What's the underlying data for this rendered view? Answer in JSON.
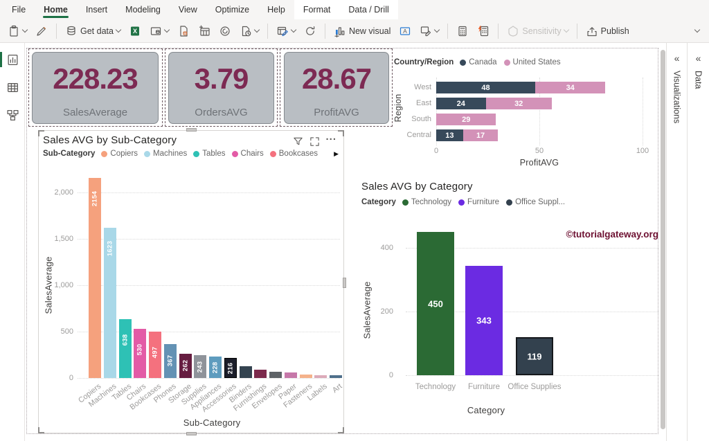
{
  "menu": {
    "items": [
      "File",
      "Home",
      "Insert",
      "Modeling",
      "View",
      "Optimize",
      "Help"
    ],
    "active_item": "Home",
    "contextual_tabs": [
      "Format",
      "Data / Drill"
    ]
  },
  "ribbon": {
    "get_data": "Get data",
    "new_visual": "New visual",
    "sensitivity": "Sensitivity",
    "publish": "Publish"
  },
  "cards": [
    {
      "value": "228.23",
      "label": "SalesAverage"
    },
    {
      "value": "3.79",
      "label": "OrdersAVG"
    },
    {
      "value": "28.67",
      "label": "ProfitAVG"
    }
  ],
  "side_panels": {
    "visualizations": "Visualizations",
    "data": "Data",
    "expand_glyph": "«"
  },
  "visual_header": {
    "more_options_glyph": "...",
    "legend_overflow_glyph": "▶"
  },
  "chart_data": [
    {
      "id": "profitavg-by-region",
      "type": "bar",
      "orientation": "horizontal",
      "stacked": true,
      "legend_title": "Country/Region",
      "legend_position": "top",
      "categories": [
        "West",
        "East",
        "South",
        "Central"
      ],
      "series": [
        {
          "name": "Canada",
          "color": "#37495A",
          "values": [
            48,
            24,
            null,
            13
          ]
        },
        {
          "name": "United States",
          "color": "#D392B8",
          "values": [
            34,
            32,
            29,
            17
          ]
        }
      ],
      "xlabel": "ProfitAVG",
      "ylabel": "Region",
      "xlim": [
        0,
        100
      ],
      "xticks": [
        0,
        50,
        100
      ],
      "grid": true
    },
    {
      "id": "sales-avg-by-subcategory",
      "type": "bar",
      "title": "Sales AVG by Sub-Category",
      "legend_title": "Sub-Category",
      "legend_visible_items": [
        {
          "label": "Copiers",
          "color": "#F5A17D"
        },
        {
          "label": "Machines",
          "color": "#A9D8E8"
        },
        {
          "label": "Tables",
          "color": "#2EC1B5"
        },
        {
          "label": "Chairs",
          "color": "#E35BA6"
        },
        {
          "label": "Bookcases",
          "color": "#F4717E"
        }
      ],
      "legend_overflow": true,
      "categories": [
        "Copiers",
        "Machines",
        "Tables",
        "Chairs",
        "Bookcases",
        "Phones",
        "Storage",
        "Supplies",
        "Appliances",
        "Accessories",
        "Binders",
        "Furnishings",
        "Envelopes",
        "Paper",
        "Fasteners",
        "Labels",
        "Art"
      ],
      "values": [
        2154,
        1623,
        638,
        530,
        497,
        367,
        262,
        243,
        228,
        216,
        130,
        92,
        64,
        57,
        35,
        33,
        30
      ],
      "data_labels": [
        2154,
        1623,
        638,
        530,
        497,
        367,
        262,
        243,
        228,
        216,
        null,
        null,
        null,
        null,
        null,
        null,
        null
      ],
      "colors": [
        "#F5A17D",
        "#A9D8E8",
        "#2EC1B5",
        "#E35BA6",
        "#F4717E",
        "#6392B4",
        "#661D40",
        "#8F939A",
        "#5E9CBE",
        "#1B1D29",
        "#344350",
        "#7C2A4C",
        "#5E6367",
        "#C678A9",
        "#F5B28B",
        "#DCAAB9",
        "#4F708B"
      ],
      "xlabel": "Sub-Category",
      "ylabel": "SalesAverage",
      "ylim": [
        0,
        2200
      ],
      "yticks": [
        0,
        500,
        1000,
        1500,
        2000
      ],
      "ytick_labels": [
        "0",
        "500",
        "1,000",
        "1,500",
        "2,000"
      ],
      "grid": true
    },
    {
      "id": "sales-avg-by-category",
      "type": "bar",
      "title": "Sales AVG by Category",
      "legend_title": "Category",
      "legend_visible_items": [
        {
          "label": "Technology",
          "color": "#2B6A34"
        },
        {
          "label": "Furniture",
          "color": "#6B2BE2"
        },
        {
          "label": "Office Suppl...",
          "color": "#33414E"
        }
      ],
      "categories": [
        "Technology",
        "Furniture",
        "Office Supplies"
      ],
      "values": [
        450,
        343,
        119
      ],
      "colors": [
        "#2B6A34",
        "#6B2BE2",
        "#33414E"
      ],
      "xlabel": "Category",
      "ylabel": "SalesAverage",
      "ylim": [
        0,
        480
      ],
      "yticks": [
        0,
        200,
        400
      ],
      "grid": true,
      "watermark": "©tutorialgateway.org"
    }
  ]
}
